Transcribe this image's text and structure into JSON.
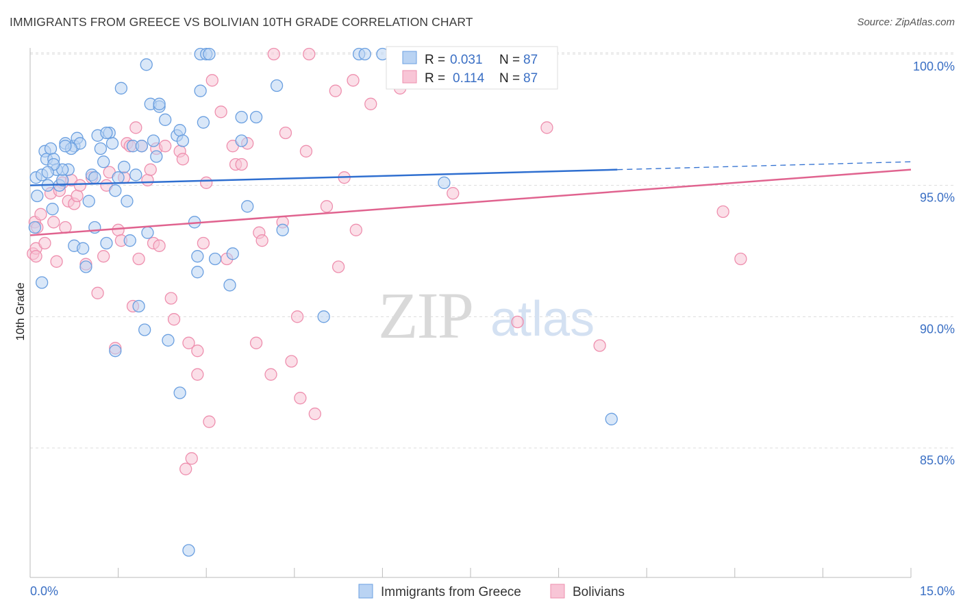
{
  "header": {
    "title": "IMMIGRANTS FROM GREECE VS BOLIVIAN 10TH GRADE CORRELATION CHART",
    "source": "Source: ZipAtlas.com"
  },
  "watermark": {
    "zip": "ZIP",
    "atlas": "atlas"
  },
  "colors": {
    "blue_fill": "#b9d3f3",
    "blue_stroke": "#6a9fe0",
    "blue_line": "#2f6fd0",
    "pink_fill": "#f8c5d6",
    "pink_stroke": "#ee8fae",
    "pink_line": "#e0638f",
    "grid": "#dcdcdc",
    "axis_text": "#3a6fc4"
  },
  "chart_data": {
    "type": "scatter",
    "ylabel": "10th Grade",
    "xlim": [
      0.0,
      15.0
    ],
    "ylim": [
      80.5,
      100.8
    ],
    "x_tick_labels": [
      "0.0%",
      "15.0%"
    ],
    "y_ticks": [
      85.0,
      90.0,
      95.0,
      100.0
    ],
    "y_tick_labels": [
      "85.0%",
      "90.0%",
      "95.0%",
      "100.0%"
    ],
    "grid": true,
    "legend_position": "bottom",
    "stats": [
      {
        "r_label": "R =",
        "r_value": "0.031",
        "n_label": "N =",
        "n_value": "87"
      },
      {
        "r_label": "R =",
        "r_value": "0.114",
        "n_label": "N =",
        "n_value": "87"
      }
    ],
    "series": [
      {
        "name": "Immigrants from Greece",
        "color": "blue",
        "trend": {
          "x0": 0.0,
          "y0": 95.0,
          "x1": 10.0,
          "y1": 95.6,
          "dash_x1": 15.0,
          "dash_y1": 95.9
        },
        "points": [
          [
            0.08,
            93.4
          ],
          [
            0.1,
            95.3
          ],
          [
            0.12,
            94.6
          ],
          [
            0.2,
            91.3
          ],
          [
            0.2,
            95.4
          ],
          [
            0.25,
            96.3
          ],
          [
            0.28,
            96.0
          ],
          [
            0.3,
            95.0
          ],
          [
            0.35,
            96.4
          ],
          [
            0.38,
            94.1
          ],
          [
            0.4,
            96.0
          ],
          [
            0.45,
            95.6
          ],
          [
            0.5,
            95.0
          ],
          [
            0.55,
            95.2
          ],
          [
            0.6,
            96.6
          ],
          [
            0.65,
            95.6
          ],
          [
            0.75,
            96.5
          ],
          [
            0.8,
            96.8
          ],
          [
            0.85,
            96.6
          ],
          [
            0.75,
            92.7
          ],
          [
            0.9,
            92.6
          ],
          [
            0.95,
            91.9
          ],
          [
            1.0,
            94.4
          ],
          [
            1.05,
            95.4
          ],
          [
            1.1,
            93.4
          ],
          [
            1.15,
            96.9
          ],
          [
            1.2,
            96.4
          ],
          [
            1.25,
            95.9
          ],
          [
            1.3,
            92.8
          ],
          [
            1.35,
            97.0
          ],
          [
            1.4,
            96.6
          ],
          [
            1.45,
            94.8
          ],
          [
            1.5,
            95.3
          ],
          [
            1.55,
            98.7
          ],
          [
            1.6,
            95.7
          ],
          [
            1.65,
            94.4
          ],
          [
            1.7,
            92.9
          ],
          [
            1.75,
            96.5
          ],
          [
            1.8,
            95.4
          ],
          [
            1.85,
            90.4
          ],
          [
            1.9,
            96.5
          ],
          [
            1.95,
            89.5
          ],
          [
            1.98,
            99.6
          ],
          [
            2.0,
            93.2
          ],
          [
            2.05,
            98.1
          ],
          [
            2.1,
            96.7
          ],
          [
            2.15,
            96.1
          ],
          [
            2.2,
            98.0
          ],
          [
            2.3,
            97.5
          ],
          [
            2.35,
            89.1
          ],
          [
            2.5,
            96.9
          ],
          [
            2.55,
            97.1
          ],
          [
            2.6,
            96.7
          ],
          [
            2.8,
            93.6
          ],
          [
            2.85,
            91.7
          ],
          [
            2.85,
            92.3
          ],
          [
            2.9,
            100.0
          ],
          [
            3.0,
            100.0
          ],
          [
            2.9,
            98.6
          ],
          [
            2.95,
            97.4
          ],
          [
            3.05,
            100.0
          ],
          [
            3.15,
            92.2
          ],
          [
            3.4,
            91.2
          ],
          [
            3.45,
            92.4
          ],
          [
            3.6,
            97.6
          ],
          [
            3.6,
            96.7
          ],
          [
            3.7,
            94.2
          ],
          [
            3.85,
            97.6
          ],
          [
            4.2,
            98.8
          ],
          [
            4.3,
            93.3
          ],
          [
            5.0,
            90.0
          ],
          [
            5.6,
            100.0
          ],
          [
            5.7,
            100.0
          ],
          [
            6.0,
            100.0
          ],
          [
            7.05,
            95.1
          ],
          [
            9.9,
            86.1
          ],
          [
            2.55,
            87.1
          ],
          [
            2.7,
            81.1
          ],
          [
            1.45,
            88.7
          ],
          [
            2.2,
            98.1
          ],
          [
            1.3,
            97.0
          ],
          [
            0.7,
            96.4
          ],
          [
            0.55,
            95.6
          ],
          [
            0.4,
            95.8
          ],
          [
            1.1,
            95.3
          ],
          [
            0.6,
            96.5
          ],
          [
            0.3,
            95.5
          ]
        ]
      },
      {
        "name": "Bolivians",
        "color": "pink",
        "trend": {
          "x0": 0.0,
          "y0": 93.1,
          "x1": 15.0,
          "y1": 95.6
        },
        "points": [
          [
            0.05,
            92.4
          ],
          [
            0.08,
            93.6
          ],
          [
            0.1,
            92.6
          ],
          [
            0.12,
            93.4
          ],
          [
            0.18,
            93.9
          ],
          [
            0.25,
            92.8
          ],
          [
            0.35,
            94.7
          ],
          [
            0.4,
            93.6
          ],
          [
            0.45,
            92.1
          ],
          [
            0.55,
            95.1
          ],
          [
            0.6,
            93.4
          ],
          [
            0.65,
            94.4
          ],
          [
            0.7,
            95.2
          ],
          [
            0.75,
            94.3
          ],
          [
            0.8,
            94.6
          ],
          [
            0.85,
            95.0
          ],
          [
            0.95,
            92.0
          ],
          [
            1.05,
            95.3
          ],
          [
            1.15,
            90.9
          ],
          [
            1.25,
            92.3
          ],
          [
            1.3,
            95.0
          ],
          [
            1.35,
            95.5
          ],
          [
            1.45,
            88.8
          ],
          [
            1.5,
            93.3
          ],
          [
            1.55,
            92.9
          ],
          [
            1.6,
            95.3
          ],
          [
            1.65,
            96.6
          ],
          [
            1.7,
            96.5
          ],
          [
            1.75,
            90.4
          ],
          [
            1.8,
            97.2
          ],
          [
            1.85,
            92.2
          ],
          [
            1.9,
            96.5
          ],
          [
            2.0,
            95.2
          ],
          [
            2.05,
            95.6
          ],
          [
            2.1,
            92.8
          ],
          [
            2.15,
            96.4
          ],
          [
            2.2,
            92.7
          ],
          [
            2.3,
            96.5
          ],
          [
            2.4,
            90.7
          ],
          [
            2.45,
            89.9
          ],
          [
            2.55,
            96.3
          ],
          [
            2.6,
            96.0
          ],
          [
            2.65,
            84.2
          ],
          [
            2.7,
            89.0
          ],
          [
            2.75,
            84.6
          ],
          [
            2.85,
            88.7
          ],
          [
            2.85,
            87.8
          ],
          [
            2.95,
            92.8
          ],
          [
            3.0,
            95.1
          ],
          [
            3.05,
            86.0
          ],
          [
            3.1,
            99.0
          ],
          [
            3.25,
            97.8
          ],
          [
            3.35,
            92.2
          ],
          [
            3.45,
            96.5
          ],
          [
            3.5,
            95.8
          ],
          [
            3.6,
            95.8
          ],
          [
            3.7,
            96.6
          ],
          [
            3.85,
            89.0
          ],
          [
            3.9,
            93.2
          ],
          [
            3.95,
            92.9
          ],
          [
            4.1,
            87.8
          ],
          [
            4.15,
            100.0
          ],
          [
            4.3,
            93.6
          ],
          [
            4.35,
            97.0
          ],
          [
            4.45,
            88.3
          ],
          [
            4.55,
            90.0
          ],
          [
            4.6,
            86.9
          ],
          [
            4.7,
            96.3
          ],
          [
            4.75,
            100.0
          ],
          [
            4.85,
            86.3
          ],
          [
            5.05,
            94.2
          ],
          [
            5.2,
            98.6
          ],
          [
            5.25,
            91.9
          ],
          [
            5.35,
            95.3
          ],
          [
            5.5,
            99.0
          ],
          [
            5.55,
            93.3
          ],
          [
            5.8,
            98.1
          ],
          [
            6.3,
            98.7
          ],
          [
            6.55,
            100.0
          ],
          [
            7.2,
            94.7
          ],
          [
            8.3,
            89.8
          ],
          [
            8.8,
            97.2
          ],
          [
            9.7,
            88.9
          ],
          [
            11.8,
            94.0
          ],
          [
            12.1,
            92.2
          ],
          [
            0.1,
            92.3
          ],
          [
            0.5,
            94.8
          ]
        ]
      }
    ]
  }
}
